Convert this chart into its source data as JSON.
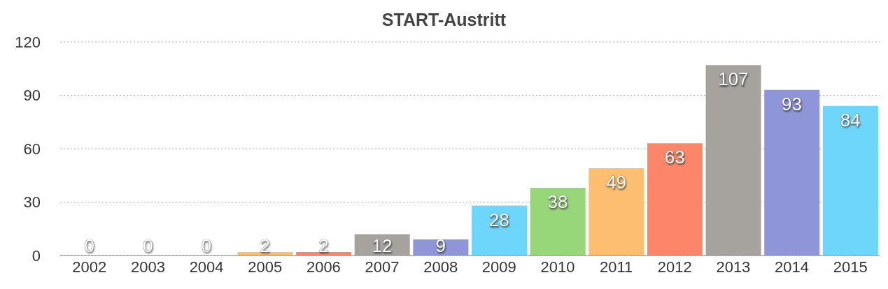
{
  "chart_data": {
    "type": "bar",
    "title": "START-Austritt",
    "categories": [
      "2002",
      "2003",
      "2004",
      "2005",
      "2006",
      "2007",
      "2008",
      "2009",
      "2010",
      "2011",
      "2012",
      "2013",
      "2014",
      "2015"
    ],
    "values": [
      0,
      0,
      0,
      2,
      2,
      12,
      9,
      28,
      38,
      49,
      63,
      107,
      93,
      84
    ],
    "colors": [
      "#8e95d9",
      "#6fd6fb",
      "#98d67a",
      "#fdbe6f",
      "#fd866a",
      "#a6a39e",
      "#8e95d9",
      "#6fd6fb",
      "#98d67a",
      "#fdbe6f",
      "#fd866a",
      "#a6a39e",
      "#8e95d9",
      "#6fd6fb"
    ],
    "ylim": [
      0,
      120
    ],
    "yticks": [
      0,
      30,
      60,
      90,
      120
    ],
    "grid": "y",
    "data_labels": true
  }
}
